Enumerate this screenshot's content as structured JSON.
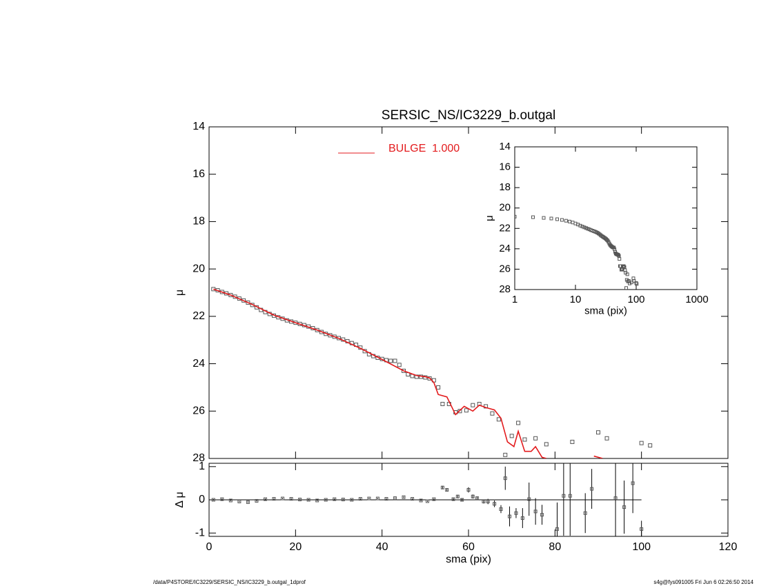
{
  "chart_data": [
    {
      "type": "scatter",
      "title": "SERSIC_NS/IC3229_b.outgal",
      "ylabel": "μ",
      "xlim": [
        0,
        120
      ],
      "xticks": [
        0,
        20,
        40,
        60,
        80,
        100,
        120
      ],
      "ylim": [
        14,
        28
      ],
      "yticks": [
        14,
        16,
        18,
        20,
        22,
        24,
        26,
        28
      ],
      "y_reversed": true,
      "series": [
        {
          "style": "markers",
          "color": "#555555",
          "x": [
            1,
            2,
            3,
            4,
            5,
            6,
            7,
            8,
            9,
            10,
            11,
            12,
            13,
            14,
            15,
            16,
            17,
            18,
            19,
            20,
            21,
            22,
            23,
            24,
            25,
            26,
            27,
            28,
            29,
            30,
            31,
            32,
            33,
            34,
            35,
            36,
            37,
            38,
            39,
            40,
            41,
            42,
            43,
            44,
            45,
            46,
            47,
            48,
            49,
            50,
            51,
            52,
            53,
            54,
            55.5,
            57,
            58,
            59.5,
            61,
            62.5,
            64,
            65.5,
            67,
            68.5,
            70,
            71.5,
            73,
            75.5,
            78,
            84,
            90,
            92,
            100,
            102
          ],
          "values": [
            20.85,
            20.9,
            20.97,
            21.03,
            21.1,
            21.17,
            21.25,
            21.33,
            21.42,
            21.52,
            21.62,
            21.73,
            21.82,
            21.9,
            21.97,
            22.04,
            22.1,
            22.17,
            22.22,
            22.27,
            22.32,
            22.37,
            22.43,
            22.5,
            22.58,
            22.66,
            22.74,
            22.8,
            22.86,
            22.92,
            22.98,
            23.05,
            23.13,
            23.2,
            23.32,
            23.47,
            23.6,
            23.68,
            23.75,
            23.8,
            23.85,
            23.88,
            23.88,
            24.05,
            24.3,
            24.45,
            24.52,
            24.55,
            24.55,
            24.58,
            24.62,
            24.7,
            25.0,
            25.7,
            25.7,
            26.05,
            26.0,
            25.97,
            25.75,
            25.7,
            25.8,
            26.1,
            26.35,
            27.85,
            27.05,
            26.5,
            27.2,
            27.15,
            27.4,
            27.3,
            26.9,
            27.15,
            27.35,
            27.45
          ]
        },
        {
          "style": "line",
          "name": "BULGE  1.000",
          "color": "#e31a1c",
          "x": [
            1,
            5,
            10,
            15,
            20,
            25,
            30,
            35,
            40,
            45,
            48,
            50,
            51,
            52,
            53,
            55,
            57,
            59,
            61,
            62.5,
            64,
            66,
            67.5,
            69,
            70.5,
            71.5,
            73,
            74.5,
            75.5,
            77,
            78,
            83,
            89,
            91
          ],
          "values": [
            20.85,
            21.1,
            21.5,
            21.95,
            22.27,
            22.58,
            22.93,
            23.35,
            23.82,
            24.3,
            24.5,
            24.55,
            24.6,
            24.8,
            25.3,
            25.4,
            26.15,
            25.8,
            26.0,
            25.75,
            25.85,
            25.95,
            26.3,
            27.3,
            27.5,
            26.85,
            27.7,
            27.7,
            27.5,
            27.95,
            28.0,
            null,
            27.9,
            28.0
          ]
        }
      ]
    },
    {
      "type": "errorbar",
      "xlabel": "sma (pix)",
      "ylabel": "Δ μ",
      "xlim": [
        0,
        120
      ],
      "xticks": [
        0,
        20,
        40,
        60,
        80,
        100,
        120
      ],
      "ylim": [
        -1.1,
        1.1
      ],
      "yticks": [
        -1,
        0,
        1
      ],
      "color": "#555555",
      "x": [
        1,
        3,
        5,
        7,
        9,
        11,
        13,
        15,
        17,
        19,
        21,
        23,
        25,
        27,
        29,
        31,
        33,
        35,
        37,
        39,
        41,
        43,
        45,
        47,
        49,
        50.5,
        52,
        54,
        55,
        56.5,
        57.5,
        58.5,
        60,
        61,
        62,
        63.5,
        64.5,
        66,
        67.5,
        68.5,
        69.5,
        71,
        72.5,
        74,
        75.5,
        77,
        80.5,
        82,
        83.5,
        87,
        88.5,
        94,
        96,
        98,
        100
      ],
      "values": [
        0,
        0.02,
        -0.02,
        -0.05,
        -0.07,
        -0.03,
        0.02,
        0.03,
        0.04,
        0.03,
        0.01,
        0,
        -0.02,
        0,
        0.02,
        0.01,
        0,
        0.03,
        0.04,
        0.04,
        0.03,
        0.05,
        0.08,
        0.03,
        -0.02,
        -0.04,
        0.02,
        0.37,
        0.3,
        0.02,
        0.1,
        0,
        0.3,
        0.1,
        0.05,
        -0.05,
        -0.05,
        -0.12,
        -0.28,
        0.65,
        -0.5,
        -0.4,
        -0.55,
        0.02,
        -0.35,
        -0.45,
        -0.88,
        0.12,
        0.12,
        -0.4,
        0.33,
        0.05,
        -0.22,
        0.5,
        -0.88
      ],
      "errors": [
        0.02,
        0.02,
        0.02,
        0.02,
        0.02,
        0.02,
        0.02,
        0.02,
        0.02,
        0.02,
        0.02,
        0.02,
        0.02,
        0.02,
        0.02,
        0.02,
        0.02,
        0.02,
        0.02,
        0.02,
        0.02,
        0.02,
        0.02,
        0.02,
        0.02,
        0.02,
        0.02,
        0.05,
        0.05,
        0.03,
        0.05,
        0.04,
        0.08,
        0.06,
        0.05,
        0.06,
        0.08,
        0.1,
        0.12,
        0.35,
        0.3,
        0.15,
        0.3,
        0.5,
        0.4,
        0.3,
        0.8,
        1.2,
        1.2,
        0.6,
        0.6,
        1.5,
        0.8,
        0.9,
        0.25
      ]
    },
    {
      "type": "scatter",
      "xlabel": "sma (pix)",
      "ylabel": "μ",
      "xscale": "log",
      "xlim": [
        1,
        1000
      ],
      "xticks": [
        1,
        10,
        100,
        1000
      ],
      "ylim": [
        14,
        28
      ],
      "yticks": [
        14,
        16,
        18,
        20,
        22,
        24,
        26,
        28
      ],
      "y_reversed": true
    }
  ],
  "footer": {
    "left": "/data/P4STORE/IC3229/SERSIC_NS/IC3229_b.outgal_1dprof",
    "right": "s4g@fys091005  Fri Jun  6 02:26:50 2014"
  }
}
